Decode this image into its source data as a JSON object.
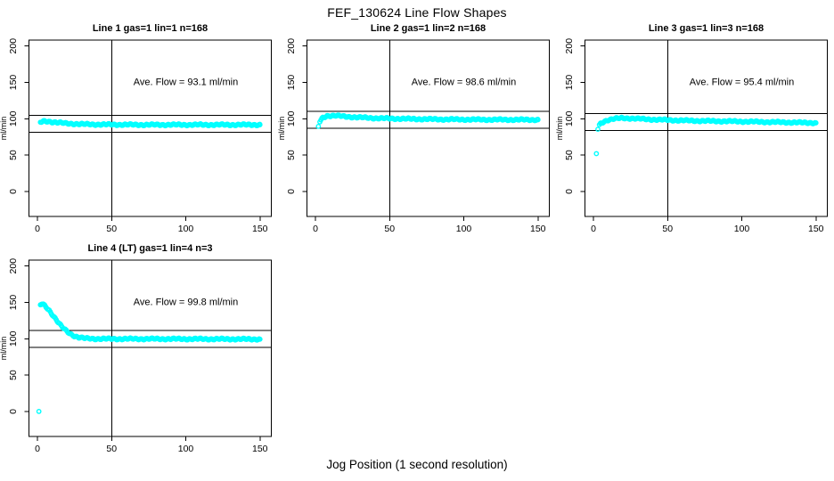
{
  "figure": {
    "title": "FEF_130624  Line Flow Shapes",
    "xlabel": "Jog Position (1 second resolution)",
    "ylabel": "ml/min",
    "marker_color": "#00ffff",
    "axis_color": "#000000",
    "background": "#ffffff"
  },
  "chart_data": [
    {
      "type": "scatter",
      "grid_cell": [
        0,
        0
      ],
      "title": "Line 1 gas=1 lin=1 n=168",
      "annotation": "Ave. Flow =  93.1  ml/min",
      "ave_flow_ml_min": 93.1,
      "n_points": 168,
      "ylabel": "ml/min",
      "x_ticks": [
        0,
        50,
        100,
        150
      ],
      "y_ticks": [
        0,
        50,
        100,
        150,
        200
      ],
      "xlim": [
        -6,
        157
      ],
      "ylim": [
        -35,
        210
      ],
      "vline_x": 50,
      "ref_line_upper": 104.6,
      "ref_line_lower": 81.6,
      "annotation_xy": [
        100,
        150
      ],
      "outlier_points": [],
      "band_keypoints": [
        [
          2,
          95
        ],
        [
          4,
          96.5
        ],
        [
          7,
          96.5
        ],
        [
          12,
          95
        ],
        [
          20,
          93.5
        ],
        [
          30,
          92.5
        ],
        [
          45,
          92
        ],
        [
          70,
          91.7
        ],
        [
          110,
          91.7
        ],
        [
          150,
          91.7
        ]
      ]
    },
    {
      "type": "scatter",
      "grid_cell": [
        0,
        1
      ],
      "title": "Line 2 gas=1 lin=2 n=168",
      "annotation": "Ave. Flow =  98.6  ml/min",
      "ave_flow_ml_min": 98.6,
      "n_points": 168,
      "ylabel": "ml/min",
      "x_ticks": [
        0,
        50,
        100,
        150
      ],
      "y_ticks": [
        0,
        50,
        100,
        150,
        200
      ],
      "xlim": [
        -6,
        157
      ],
      "ylim": [
        -35,
        210
      ],
      "vline_x": 50,
      "ref_line_upper": 110.1,
      "ref_line_lower": 87.1,
      "annotation_xy": [
        100,
        150
      ],
      "outlier_points": [
        [
          2,
          89.5
        ]
      ],
      "band_keypoints": [
        [
          3,
          96
        ],
        [
          5,
          101.5
        ],
        [
          8,
          104
        ],
        [
          13,
          104.3
        ],
        [
          20,
          103
        ],
        [
          28,
          102
        ],
        [
          38,
          101
        ],
        [
          50,
          100.3
        ],
        [
          65,
          99.7
        ],
        [
          85,
          99.2
        ],
        [
          110,
          98.8
        ],
        [
          150,
          98.6
        ]
      ]
    },
    {
      "type": "scatter",
      "grid_cell": [
        0,
        2
      ],
      "title": "Line 3 gas=1 lin=3 n=168",
      "annotation": "Ave. Flow =  95.4  ml/min",
      "ave_flow_ml_min": 95.4,
      "n_points": 168,
      "ylabel": "ml/min",
      "x_ticks": [
        0,
        50,
        100,
        150
      ],
      "y_ticks": [
        0,
        50,
        100,
        150,
        200
      ],
      "xlim": [
        -6,
        157
      ],
      "ylim": [
        -35,
        210
      ],
      "vline_x": 50,
      "ref_line_upper": 106.9,
      "ref_line_lower": 83.9,
      "annotation_xy": [
        100,
        150
      ],
      "outlier_points": [
        [
          2,
          52
        ],
        [
          3,
          85.5
        ]
      ],
      "band_keypoints": [
        [
          4,
          91
        ],
        [
          5,
          93.5
        ],
        [
          7,
          96
        ],
        [
          10,
          98.5
        ],
        [
          14,
          100
        ],
        [
          19,
          100.8
        ],
        [
          26,
          100.5
        ],
        [
          35,
          99.4
        ],
        [
          45,
          98.6
        ],
        [
          60,
          97.6
        ],
        [
          80,
          96.8
        ],
        [
          100,
          96.2
        ],
        [
          120,
          95.4
        ],
        [
          150,
          94.3
        ]
      ]
    },
    {
      "type": "scatter",
      "grid_cell": [
        1,
        0
      ],
      "title": "Line 4 (LT) gas=1 lin=4 n=3",
      "annotation": "Ave. Flow =  99.8  ml/min",
      "ave_flow_ml_min": 99.8,
      "n_points": 3,
      "ylabel": "ml/min",
      "x_ticks": [
        0,
        50,
        100,
        150
      ],
      "y_ticks": [
        0,
        50,
        100,
        150,
        200
      ],
      "xlim": [
        -6,
        157
      ],
      "ylim": [
        -35,
        210
      ],
      "vline_x": 50,
      "ref_line_upper": 111.3,
      "ref_line_lower": 88.3,
      "annotation_xy": [
        100,
        150
      ],
      "outlier_points": [
        [
          1,
          0
        ]
      ],
      "band_keypoints": [
        [
          2,
          146.5
        ],
        [
          3,
          148
        ],
        [
          4,
          147
        ],
        [
          5,
          145.5
        ],
        [
          6,
          143.5
        ],
        [
          8,
          139
        ],
        [
          10,
          133.5
        ],
        [
          12,
          128
        ],
        [
          14,
          122.5
        ],
        [
          16,
          117.5
        ],
        [
          18,
          113.5
        ],
        [
          20,
          110
        ],
        [
          22,
          107
        ],
        [
          25,
          103.8
        ],
        [
          28,
          101.8
        ],
        [
          32,
          100.6
        ],
        [
          38,
          100
        ],
        [
          50,
          99.8
        ],
        [
          80,
          99.8
        ],
        [
          120,
          99.6
        ],
        [
          150,
          99.4
        ]
      ]
    }
  ]
}
